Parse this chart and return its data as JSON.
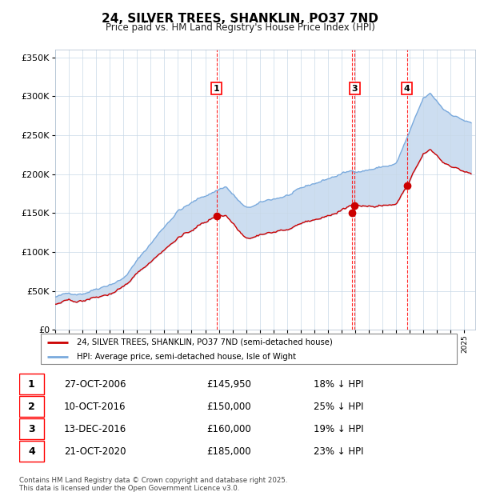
{
  "title_line1": "24, SILVER TREES, SHANKLIN, PO37 7ND",
  "title_line2": "Price paid vs. HM Land Registry's House Price Index (HPI)",
  "legend_label1": "24, SILVER TREES, SHANKLIN, PO37 7ND (semi-detached house)",
  "legend_label2": "HPI: Average price, semi-detached house, Isle of Wight",
  "transactions": [
    {
      "num": 1,
      "date": "27-OCT-2006",
      "price": 145950,
      "pct": "18%",
      "year_x": 2006.83
    },
    {
      "num": 2,
      "date": "10-OCT-2016",
      "price": 150000,
      "pct": "25%",
      "year_x": 2016.78
    },
    {
      "num": 3,
      "date": "13-DEC-2016",
      "price": 160000,
      "pct": "19%",
      "year_x": 2016.96
    },
    {
      "num": 4,
      "date": "21-OCT-2020",
      "price": 185000,
      "pct": "23%",
      "year_x": 2020.8
    }
  ],
  "hpi_color": "#7aaadd",
  "price_color": "#cc0000",
  "fill_color": "#ccddf0",
  "ylabel_ticks": [
    "£0",
    "£50K",
    "£100K",
    "£150K",
    "£200K",
    "£250K",
    "£300K",
    "£350K"
  ],
  "ytick_vals": [
    0,
    50000,
    100000,
    150000,
    200000,
    250000,
    300000,
    350000
  ],
  "xmin": 1995.0,
  "xmax": 2025.8,
  "ymin": 0,
  "ymax": 360000,
  "footer_line1": "Contains HM Land Registry data © Crown copyright and database right 2025.",
  "footer_line2": "This data is licensed under the Open Government Licence v3.0."
}
